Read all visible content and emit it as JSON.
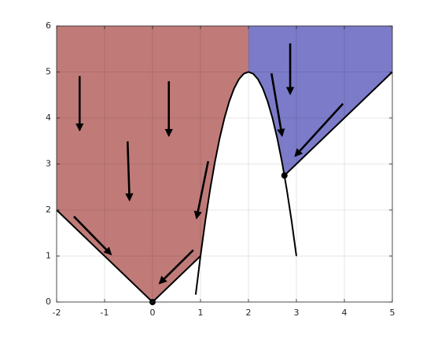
{
  "chart_data": {
    "type": "region",
    "xlim": [
      -2,
      5
    ],
    "ylim": [
      0,
      6
    ],
    "xticks": [
      -2,
      -1,
      0,
      1,
      2,
      3,
      4,
      5
    ],
    "yticks": [
      0,
      1,
      2,
      3,
      4,
      5,
      6
    ],
    "grid": true,
    "regions": [
      {
        "color": "#c07b79",
        "x": [
          -2,
          0,
          1,
          1.1,
          1.2,
          1.3,
          1.4,
          1.5,
          1.6,
          1.7,
          1.8,
          1.9,
          2,
          2,
          -2
        ],
        "y": [
          2,
          0,
          1,
          1.76,
          2.44,
          3.04,
          3.56,
          4,
          4.36,
          4.64,
          4.84,
          4.96,
          5,
          6,
          6
        ]
      },
      {
        "color": "#7b7bc9",
        "x": [
          2,
          2.1,
          2.2,
          2.3,
          2.4,
          2.5,
          2.6,
          2.7,
          2.75,
          5,
          5,
          2
        ],
        "y": [
          5,
          4.96,
          4.84,
          4.64,
          4.36,
          4,
          3.56,
          3.04,
          2.75,
          5,
          6,
          6
        ]
      }
    ],
    "curves": [
      {
        "color": "#000000",
        "x": [
          -2,
          0,
          1
        ],
        "y": [
          2,
          0,
          1
        ]
      },
      {
        "color": "#000000",
        "x": [
          0.9,
          1,
          1.1,
          1.2,
          1.3,
          1.4,
          1.5,
          1.6,
          1.7,
          1.8,
          1.9,
          2,
          2.1,
          2.2,
          2.3,
          2.4,
          2.5,
          2.6,
          2.7,
          2.8,
          2.9,
          3
        ],
        "y": [
          0.16,
          1,
          1.76,
          2.44,
          3.04,
          3.56,
          4,
          4.36,
          4.64,
          4.84,
          4.96,
          5,
          4.96,
          4.84,
          4.64,
          4.36,
          4,
          3.56,
          3.04,
          2.44,
          1.76,
          1
        ]
      },
      {
        "color": "#000000",
        "x": [
          2.75,
          5
        ],
        "y": [
          2.75,
          5
        ]
      }
    ],
    "arrows": [
      {
        "x": [
          -1.52,
          -1.52
        ],
        "y": [
          4.91,
          3.74
        ]
      },
      {
        "x": [
          0.34,
          0.34
        ],
        "y": [
          4.8,
          3.62
        ]
      },
      {
        "x": [
          -0.52,
          -0.48
        ],
        "y": [
          3.49,
          2.22
        ]
      },
      {
        "x": [
          -1.64,
          -0.87
        ],
        "y": [
          1.86,
          1.04
        ]
      },
      {
        "x": [
          0.85,
          0.15
        ],
        "y": [
          1.13,
          0.41
        ]
      },
      {
        "x": [
          1.16,
          0.92
        ],
        "y": [
          3.06,
          1.83
        ]
      },
      {
        "x": [
          2.87,
          2.87
        ],
        "y": [
          5.62,
          4.53
        ]
      },
      {
        "x": [
          2.48,
          2.7
        ],
        "y": [
          4.97,
          3.62
        ]
      },
      {
        "x": [
          3.97,
          2.98
        ],
        "y": [
          4.31,
          3.18
        ]
      }
    ],
    "points": {
      "x": [
        0,
        2.75
      ],
      "y": [
        0,
        2.75
      ],
      "color": "#000000"
    }
  }
}
